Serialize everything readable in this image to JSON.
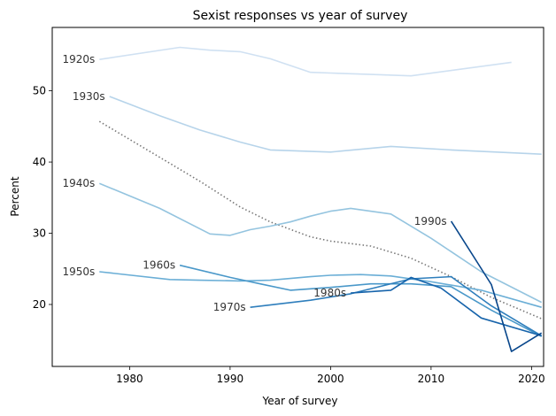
{
  "chart_data": {
    "type": "line",
    "title": "Sexist responses vs year of survey",
    "xlabel": "Year of survey",
    "ylabel": "Percent",
    "xlim": [
      1972.3,
      2021.2
    ],
    "ylim": [
      11.3,
      58.9
    ],
    "x_ticks": [
      1980,
      1990,
      2000,
      2010,
      2020
    ],
    "y_ticks": [
      20,
      30,
      40,
      50
    ],
    "grid": false,
    "legend": "none",
    "series": [
      {
        "name": "1920s",
        "color": "#d0e1f2",
        "label_at": [
          1977,
          54.4
        ],
        "x": [
          1977,
          1985,
          1988,
          1991,
          1994,
          1998,
          2000,
          2004,
          2008,
          2018
        ],
        "y": [
          54.4,
          56.1,
          55.7,
          55.5,
          54.5,
          52.6,
          52.5,
          52.3,
          52.1,
          54.0
        ]
      },
      {
        "name": "1930s",
        "color": "#b7d4ea",
        "label_at": [
          1978,
          49.2
        ],
        "x": [
          1978,
          1983,
          1987,
          1991,
          1994,
          2000,
          2006,
          2012,
          2021
        ],
        "y": [
          49.2,
          46.5,
          44.5,
          42.8,
          41.7,
          41.4,
          42.2,
          41.7,
          41.1
        ]
      },
      {
        "name": "1940s",
        "color": "#94c4df",
        "label_at": [
          1977,
          37.0
        ],
        "x": [
          1977,
          1983,
          1988,
          1990,
          1992,
          1994,
          1996,
          1998,
          2000,
          2002,
          2006,
          2010,
          2015,
          2021
        ],
        "y": [
          37.0,
          33.5,
          29.9,
          29.7,
          30.5,
          31.0,
          31.6,
          32.4,
          33.1,
          33.5,
          32.7,
          29.3,
          24.6,
          20.3
        ]
      },
      {
        "name": "1950s",
        "color": "#6aaed6",
        "label_at": [
          1977,
          24.6
        ],
        "x": [
          1977,
          1984,
          1987,
          1991,
          1994,
          1998,
          2000,
          2003,
          2006,
          2010,
          2015,
          2021
        ],
        "y": [
          24.6,
          23.5,
          23.4,
          23.3,
          23.4,
          23.9,
          24.1,
          24.2,
          24.0,
          23.2,
          22.0,
          19.6
        ]
      },
      {
        "name": "1960s",
        "color": "#4a98c9",
        "label_at": [
          1985,
          25.5
        ],
        "x": [
          1985,
          1990,
          1993,
          1996,
          2000,
          2004,
          2008,
          2012,
          2016,
          2021
        ],
        "y": [
          25.5,
          23.8,
          22.9,
          22.0,
          22.4,
          22.9,
          22.9,
          22.5,
          19.2,
          15.5
        ]
      },
      {
        "name": "1970s",
        "color": "#2e7ebc",
        "label_at": [
          1992,
          19.6
        ],
        "x": [
          1992,
          1998,
          2002,
          2008,
          2012,
          2016,
          2021
        ],
        "y": [
          19.6,
          20.6,
          21.5,
          23.6,
          23.9,
          19.8,
          15.6
        ]
      },
      {
        "name": "1980s",
        "color": "#1764ab",
        "label_at": [
          2002,
          21.6
        ],
        "x": [
          2002,
          2006,
          2008,
          2011,
          2015,
          2021
        ],
        "y": [
          21.6,
          22.0,
          23.8,
          22.3,
          18.1,
          15.6
        ]
      },
      {
        "name": "1990s",
        "color": "#08468b",
        "label_at": [
          2012,
          31.7
        ],
        "x": [
          2012,
          2016,
          2018,
          2021
        ],
        "y": [
          31.7,
          22.8,
          13.4,
          16.0
        ]
      }
    ],
    "trend": {
      "style": "dotted",
      "color": "#777777",
      "x": [
        1977,
        1982,
        1987,
        1991,
        1994,
        1998,
        2000,
        2004,
        2008,
        2012,
        2016,
        2021
      ],
      "y": [
        45.7,
        41.5,
        37.3,
        33.7,
        31.6,
        29.5,
        28.9,
        28.2,
        26.5,
        23.9,
        21.0,
        18.0
      ]
    }
  }
}
